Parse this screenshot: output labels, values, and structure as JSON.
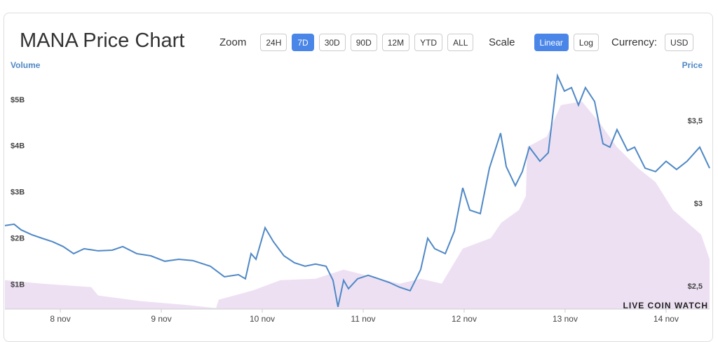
{
  "chart_data": {
    "type": "line",
    "title": "MANA Price Chart",
    "log_scale": false,
    "grid": false,
    "xlim": [
      7.451,
      14.431
    ],
    "xticks": [
      {
        "value": 8,
        "label": "8 nov"
      },
      {
        "value": 9,
        "label": "9 nov"
      },
      {
        "value": 10,
        "label": "10 nov"
      },
      {
        "value": 11,
        "label": "11 nov"
      },
      {
        "value": 12,
        "label": "12 nov"
      },
      {
        "value": 13,
        "label": "13 nov"
      },
      {
        "value": 14,
        "label": "14 nov"
      }
    ],
    "ylim": [
      480000000,
      5650000000
    ],
    "yticks": [
      {
        "value": 1000000000,
        "label": "$1B"
      },
      {
        "value": 2000000000,
        "label": "$2B"
      },
      {
        "value": 3000000000,
        "label": "$3B"
      },
      {
        "value": 4000000000,
        "label": "$4B"
      },
      {
        "value": 5000000000,
        "label": "$5B"
      }
    ],
    "y2lim": [
      2.364,
      3.809
    ],
    "y2ticks": [
      {
        "value": 2.5,
        "label": "$2,5"
      },
      {
        "value": 3,
        "label": "$3"
      },
      {
        "value": 3.5,
        "label": "$3,5"
      }
    ],
    "watermark": "LIVE COIN WATCH",
    "series": [
      {
        "name": "Volume",
        "color": "#ede0f3",
        "style": "area",
        "axis": "y",
        "x": [
          7.451,
          7.819,
          8.306,
          8.375,
          8.792,
          9.208,
          9.542,
          9.569,
          9.903,
          10.181,
          10.528,
          10.806,
          11.083,
          11.361,
          11.569,
          11.778,
          11.986,
          12.264,
          12.368,
          12.542,
          12.611,
          12.625,
          12.819,
          12.958,
          13.167,
          13.34,
          13.514,
          13.722,
          13.896,
          14.069,
          14.347,
          14.431
        ],
        "values": [
          1106000000,
          1030000000,
          955000000,
          773000000,
          652000000,
          576000000,
          500000000,
          682000000,
          879000000,
          1106000000,
          1136000000,
          1333000000,
          1182000000,
          1030000000,
          1136000000,
          1030000000,
          1788000000,
          2015000000,
          2348000000,
          2621000000,
          2924000000,
          3985000000,
          4212000000,
          4894000000,
          4970000000,
          4515000000,
          3985000000,
          3530000000,
          3227000000,
          2621000000,
          2091000000,
          1561000000
        ]
      },
      {
        "name": "Price",
        "color": "#4f88c6",
        "style": "line",
        "axis": "y2",
        "x": [
          7.451,
          7.542,
          7.611,
          7.715,
          7.819,
          7.924,
          8.028,
          8.132,
          8.236,
          8.375,
          8.514,
          8.618,
          8.757,
          8.896,
          9.035,
          9.174,
          9.313,
          9.486,
          9.625,
          9.764,
          9.833,
          9.889,
          9.938,
          10.028,
          10.111,
          10.215,
          10.319,
          10.424,
          10.528,
          10.632,
          10.701,
          10.75,
          10.806,
          10.854,
          10.944,
          11.049,
          11.153,
          11.257,
          11.361,
          11.465,
          11.569,
          11.639,
          11.708,
          11.813,
          11.903,
          11.986,
          12.056,
          12.16,
          12.25,
          12.361,
          12.417,
          12.507,
          12.576,
          12.646,
          12.75,
          12.833,
          12.924,
          12.993,
          13.063,
          13.132,
          13.201,
          13.292,
          13.375,
          13.444,
          13.514,
          13.618,
          13.688,
          13.792,
          13.896,
          14.0,
          14.104,
          14.208,
          14.333,
          14.431
        ],
        "values": [
          2.869,
          2.877,
          2.843,
          2.814,
          2.792,
          2.771,
          2.742,
          2.699,
          2.729,
          2.716,
          2.72,
          2.742,
          2.699,
          2.686,
          2.653,
          2.665,
          2.657,
          2.623,
          2.559,
          2.572,
          2.547,
          2.699,
          2.665,
          2.856,
          2.771,
          2.686,
          2.644,
          2.623,
          2.636,
          2.623,
          2.538,
          2.377,
          2.538,
          2.487,
          2.547,
          2.568,
          2.547,
          2.525,
          2.496,
          2.475,
          2.602,
          2.792,
          2.729,
          2.699,
          2.835,
          3.097,
          2.962,
          2.941,
          3.216,
          3.428,
          3.225,
          3.11,
          3.195,
          3.343,
          3.258,
          3.309,
          3.775,
          3.682,
          3.703,
          3.597,
          3.703,
          3.619,
          3.364,
          3.343,
          3.449,
          3.322,
          3.343,
          3.216,
          3.195,
          3.258,
          3.208,
          3.258,
          3.343,
          3.216
        ]
      }
    ]
  },
  "toolbar": {
    "zoom_label": "Zoom",
    "zoom_options": [
      "24H",
      "7D",
      "30D",
      "90D",
      "12M",
      "YTD",
      "ALL"
    ],
    "zoom_selected": "7D",
    "scale_label": "Scale",
    "scale_options": [
      "Linear",
      "Log"
    ],
    "scale_selected": "Linear",
    "currency_label": "Currency:",
    "currency": "USD"
  }
}
